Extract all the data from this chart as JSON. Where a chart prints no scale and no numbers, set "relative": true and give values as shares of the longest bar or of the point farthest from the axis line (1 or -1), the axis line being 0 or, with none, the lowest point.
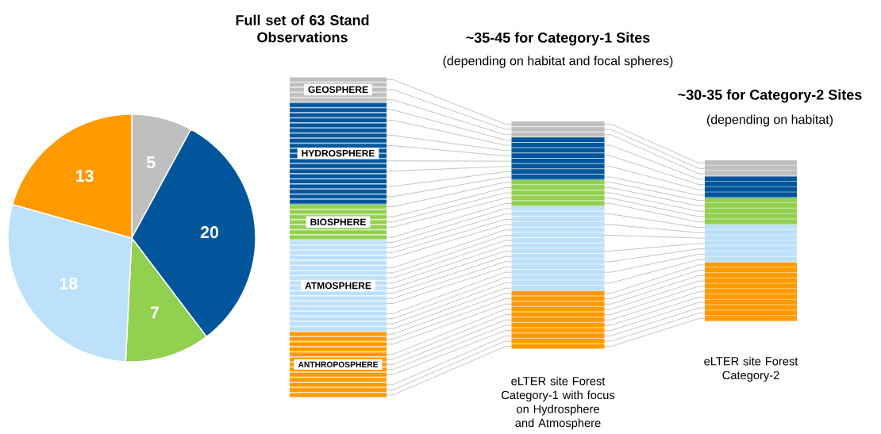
{
  "chart_data": [
    {
      "type": "pie",
      "categories": [
        null,
        null,
        null,
        null,
        null
      ],
      "values": [
        5,
        20,
        7,
        18,
        13
      ],
      "colors": [
        "#bfbfbf",
        "#00559b",
        "#92d050",
        "#bde0fb",
        "#ff9a00"
      ],
      "data_labels": true
    },
    {
      "type": "bar",
      "stacked": true,
      "relative": true,
      "title": "Full set of 63 Stand Observations",
      "categories": [
        null
      ],
      "series": [
        {
          "name": "ANTHROPOSPHERE",
          "color": "#ff9a00",
          "values": [
            0.206
          ]
        },
        {
          "name": "ATMOSPHERE",
          "color": "#bde0fb",
          "values": [
            0.286
          ]
        },
        {
          "name": "BIOSPHERE",
          "color": "#92d050",
          "values": [
            0.111
          ]
        },
        {
          "name": "HYDROSPHERE",
          "color": "#00559b",
          "values": [
            0.318
          ]
        },
        {
          "name": "GEOSPHERE",
          "color": "#bfbfbf",
          "values": [
            0.079
          ]
        }
      ]
    },
    {
      "type": "bar",
      "stacked": true,
      "relative": true,
      "title": "~35-45 for Category-1 Sites",
      "subtitle": "(depending on habitat and focal spheres)",
      "categories": [
        "eLTER site Forest Category-1 with focus on Hydrosphere and Atmosphere"
      ],
      "series": [
        {
          "color": "#ff9a00",
          "values": [
            0.256
          ]
        },
        {
          "color": "#bde0fb",
          "values": [
            0.372
          ]
        },
        {
          "color": "#92d050",
          "values": [
            0.116
          ]
        },
        {
          "color": "#00559b",
          "values": [
            0.186
          ]
        },
        {
          "color": "#bfbfbf",
          "values": [
            0.07
          ]
        }
      ]
    },
    {
      "type": "bar",
      "stacked": true,
      "relative": true,
      "title": "~30-35 for Category-2 Sites",
      "subtitle": "(depending on habitat)",
      "categories": [
        "eLTER site Forest Category-2"
      ],
      "series": [
        {
          "color": "#ff9a00",
          "values": [
            0.367
          ]
        },
        {
          "color": "#bde0fb",
          "values": [
            0.233
          ]
        },
        {
          "color": "#92d050",
          "values": [
            0.167
          ]
        },
        {
          "color": "#00559b",
          "values": [
            0.133
          ]
        },
        {
          "color": "#bfbfbf",
          "values": [
            0.1
          ]
        }
      ]
    }
  ]
}
